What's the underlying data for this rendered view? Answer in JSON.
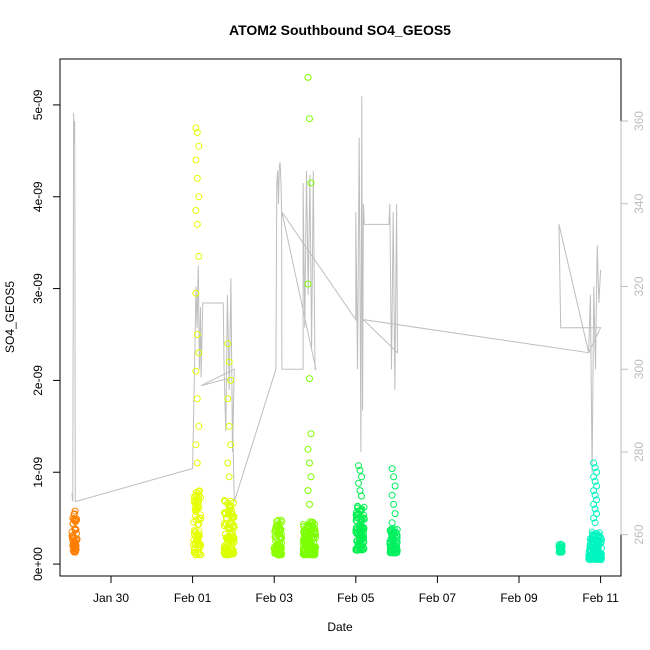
{
  "chart_data": {
    "type": "scatter",
    "title": "ATOM2 Southbound SO4_GEOS5",
    "xlabel": "Date",
    "ylabel": "SO4_GEOS5",
    "y_right_label": "",
    "x_range": [
      "2017-01-28T18:00",
      "2017-02-11T12:00"
    ],
    "x_ticks": [
      {
        "date": "2017-01-30",
        "label": "Jan 30"
      },
      {
        "date": "2017-02-01",
        "label": "Feb 01"
      },
      {
        "date": "2017-02-03",
        "label": "Feb 03"
      },
      {
        "date": "2017-02-05",
        "label": "Feb 05"
      },
      {
        "date": "2017-02-07",
        "label": "Feb 07"
      },
      {
        "date": "2017-02-09",
        "label": "Feb 09"
      },
      {
        "date": "2017-02-11",
        "label": "Feb 11"
      }
    ],
    "ylim": [
      -1.3e-10,
      5.5e-09
    ],
    "y_ticks": [
      {
        "value": 0,
        "label": "0e+00"
      },
      {
        "value": 1e-09,
        "label": "1e-09"
      },
      {
        "value": 2e-09,
        "label": "2e-09"
      },
      {
        "value": 3e-09,
        "label": "3e-09"
      },
      {
        "value": 4e-09,
        "label": "4e-09"
      },
      {
        "value": 5e-09,
        "label": "5e-09"
      }
    ],
    "y_right_lim": [
      250,
      375
    ],
    "y_right_ticks": [
      260,
      280,
      300,
      320,
      340,
      360
    ],
    "grid": false,
    "legend": "none",
    "scatter_segments": [
      {
        "start": "2017-01-29T01:00",
        "end": "2017-01-29T04:00",
        "color": "#FF7F00",
        "base": [
          1.3e-10,
          5.8e-10
        ],
        "outliers": []
      },
      {
        "start": "2017-02-01T00:30",
        "end": "2017-02-01T05:00",
        "color": "#E6FF00",
        "base": [
          1e-10,
          8e-10
        ],
        "outliers": [
          4.75e-09,
          4.7e-09,
          4.55e-09,
          4.4e-09,
          4.2e-09,
          4e-09,
          3.85e-09,
          3.7e-09,
          3.35e-09,
          2.95e-09,
          2.5e-09,
          2.3e-09,
          2.1e-09,
          1.8e-09,
          1.5e-09,
          1.3e-09,
          1.1e-09
        ]
      },
      {
        "start": "2017-02-01T18:30",
        "end": "2017-02-02T00:30",
        "color": "#DCFF00",
        "base": [
          1e-10,
          7e-10
        ],
        "outliers": [
          2.4e-09,
          2.2e-09,
          2e-09,
          1.8e-09,
          1.5e-09,
          1.3e-09,
          1.1e-09,
          9.5e-10
        ]
      },
      {
        "start": "2017-02-03T00:00",
        "end": "2017-02-03T04:30",
        "color": "#8CFF00",
        "base": [
          1e-10,
          4.8e-10
        ],
        "outliers": []
      },
      {
        "start": "2017-02-03T17:00",
        "end": "2017-02-04T00:30",
        "color": "#7CFF00",
        "base": [
          1e-10,
          4.8e-10
        ],
        "outliers": [
          5.3e-09,
          4.85e-09,
          4.15e-09,
          3.05e-09,
          2.02e-09,
          1.42e-09,
          1.25e-09,
          1.1e-09,
          9.5e-10,
          8e-10,
          6.5e-10
        ]
      },
      {
        "start": "2017-02-05T00:00",
        "end": "2017-02-05T05:00",
        "color": "#00F050",
        "base": [
          1.5e-10,
          6.5e-10
        ],
        "outliers": [
          1.07e-09,
          1.02e-09,
          9.5e-10,
          8.8e-10,
          8e-10,
          7.4e-10
        ]
      },
      {
        "start": "2017-02-05T20:00",
        "end": "2017-02-06T00:30",
        "color": "#00F060",
        "base": [
          1.2e-10,
          4e-10
        ],
        "outliers": [
          1.04e-09,
          9.5e-10,
          8.5e-10,
          7.5e-10,
          6.5e-10,
          5.5e-10,
          4.5e-10
        ]
      },
      {
        "start": "2017-02-09T23:30",
        "end": "2017-02-10T01:30",
        "color": "#00F5A0",
        "base": [
          1.3e-10,
          2.2e-10
        ],
        "outliers": []
      },
      {
        "start": "2017-02-10T17:00",
        "end": "2017-02-11T00:30",
        "color": "#00F5C0",
        "base": [
          5e-11,
          3.5e-10
        ],
        "outliers": [
          1.1e-09,
          1.05e-09,
          1e-09,
          9.5e-10,
          9e-10,
          8.5e-10,
          8e-10,
          7.5e-10,
          7e-10,
          6.5e-10,
          6e-10,
          5.5e-10,
          5e-10,
          4.5e-10
        ]
      }
    ],
    "line_series": {
      "color": "#BEBEBE",
      "axis": "right",
      "points": [
        [
          "2017-01-29T01:00",
          270
        ],
        [
          "2017-01-29T01:30",
          268
        ],
        [
          "2017-01-29T02:00",
          362
        ],
        [
          "2017-01-29T02:20",
          355
        ],
        [
          "2017-01-29T02:40",
          360
        ],
        [
          "2017-01-29T03:00",
          268
        ],
        [
          "2017-02-01T00:00",
          276
        ],
        [
          "2017-02-01T00:40",
          290
        ],
        [
          "2017-02-01T01:20",
          305
        ],
        [
          "2017-02-01T02:00",
          320
        ],
        [
          "2017-02-01T02:40",
          310
        ],
        [
          "2017-02-01T03:20",
          325
        ],
        [
          "2017-02-01T04:00",
          300
        ],
        [
          "2017-02-01T04:40",
          315
        ],
        [
          "2017-02-01T05:00",
          298
        ],
        [
          "2017-02-01T06:00",
          316
        ],
        [
          "2017-02-01T18:00",
          316
        ],
        [
          "2017-02-01T18:30",
          300
        ],
        [
          "2017-02-01T19:30",
          285
        ],
        [
          "2017-02-01T20:30",
          318
        ],
        [
          "2017-02-01T21:30",
          295
        ],
        [
          "2017-02-01T22:30",
          322
        ],
        [
          "2017-02-01T23:30",
          280
        ],
        [
          "2017-02-02T00:30",
          300
        ],
        [
          "2017-02-01T05:00",
          296
        ],
        [
          "2017-02-01T23:00",
          298
        ],
        [
          "2017-02-02T00:30",
          268
        ],
        [
          "2017-02-03T01:00",
          300
        ],
        [
          "2017-02-03T01:00",
          300
        ],
        [
          "2017-02-03T01:30",
          345
        ],
        [
          "2017-02-03T02:00",
          348
        ],
        [
          "2017-02-03T02:30",
          340
        ],
        [
          "2017-02-03T03:00",
          349
        ],
        [
          "2017-02-03T03:30",
          350
        ],
        [
          "2017-02-03T04:00",
          345
        ],
        [
          "2017-02-03T04:20",
          338
        ],
        [
          "2017-02-03T04:30",
          300
        ],
        [
          "2017-02-03T17:00",
          300
        ],
        [
          "2017-02-03T17:00",
          345
        ],
        [
          "2017-02-03T18:00",
          310
        ],
        [
          "2017-02-03T19:00",
          348
        ],
        [
          "2017-02-03T20:00",
          318
        ],
        [
          "2017-02-03T21:00",
          347
        ],
        [
          "2017-02-03T22:00",
          305
        ],
        [
          "2017-02-03T23:00",
          348
        ],
        [
          "2017-02-04T00:00",
          300
        ],
        [
          "2017-02-04T00:30",
          300
        ],
        [
          "2017-02-03T04:30",
          338
        ],
        [
          "2017-02-03T04:30",
          338
        ],
        [
          "2017-02-05T00:00",
          312
        ],
        [
          "2017-02-05T00:00",
          338
        ],
        [
          "2017-02-05T01:00",
          300
        ],
        [
          "2017-02-05T02:00",
          356
        ],
        [
          "2017-02-05T03:00",
          280
        ],
        [
          "2017-02-05T03:30",
          366
        ],
        [
          "2017-02-05T04:00",
          290
        ],
        [
          "2017-02-05T04:30",
          340
        ],
        [
          "2017-02-05T05:00",
          335
        ],
        [
          "2017-02-05T05:00",
          335
        ],
        [
          "2017-02-05T19:30",
          335
        ],
        [
          "2017-02-05T20:00",
          340
        ],
        [
          "2017-02-05T21:00",
          300
        ],
        [
          "2017-02-05T22:00",
          338
        ],
        [
          "2017-02-05T23:00",
          295
        ],
        [
          "2017-02-06T00:00",
          340
        ],
        [
          "2017-02-06T00:30",
          304
        ],
        [
          "2017-02-05T04:30",
          312
        ],
        [
          "2017-02-05T04:30",
          312
        ],
        [
          "2017-02-10T17:00",
          304
        ],
        [
          "2017-02-09T23:30",
          335
        ],
        [
          "2017-02-10T00:30",
          310
        ],
        [
          "2017-02-11T00:00",
          310
        ],
        [
          "2017-02-10T17:00",
          304
        ],
        [
          "2017-02-10T18:00",
          318
        ],
        [
          "2017-02-10T19:00",
          275
        ],
        [
          "2017-02-10T20:00",
          320
        ],
        [
          "2017-02-10T21:00",
          300
        ],
        [
          "2017-02-10T22:00",
          330
        ],
        [
          "2017-02-10T23:00",
          316
        ],
        [
          "2017-02-11T00:00",
          324
        ]
      ]
    }
  }
}
